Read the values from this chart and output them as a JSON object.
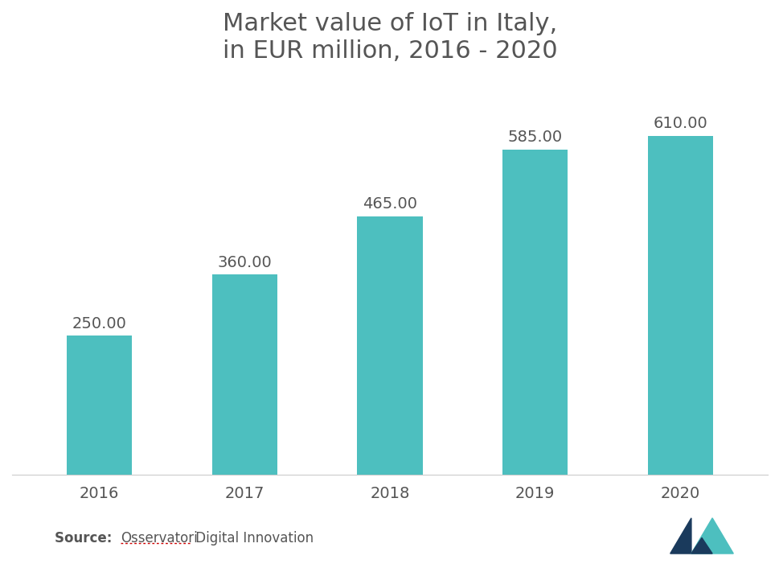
{
  "title": "Market value of IoT in Italy,\nin EUR million, 2016 - 2020",
  "categories": [
    "2016",
    "2017",
    "2018",
    "2019",
    "2020"
  ],
  "values": [
    250.0,
    360.0,
    465.0,
    585.0,
    610.0
  ],
  "bar_color": "#4DBFBF",
  "label_color": "#555555",
  "title_color": "#555555",
  "background_color": "#ffffff",
  "source_bold": "Source: ",
  "source_link": "Osservatori",
  "source_rest": " Digital Innovation",
  "title_fontsize": 22,
  "label_fontsize": 14,
  "tick_fontsize": 14,
  "source_fontsize": 12,
  "ylim": [
    0,
    700
  ],
  "bar_width": 0.45
}
